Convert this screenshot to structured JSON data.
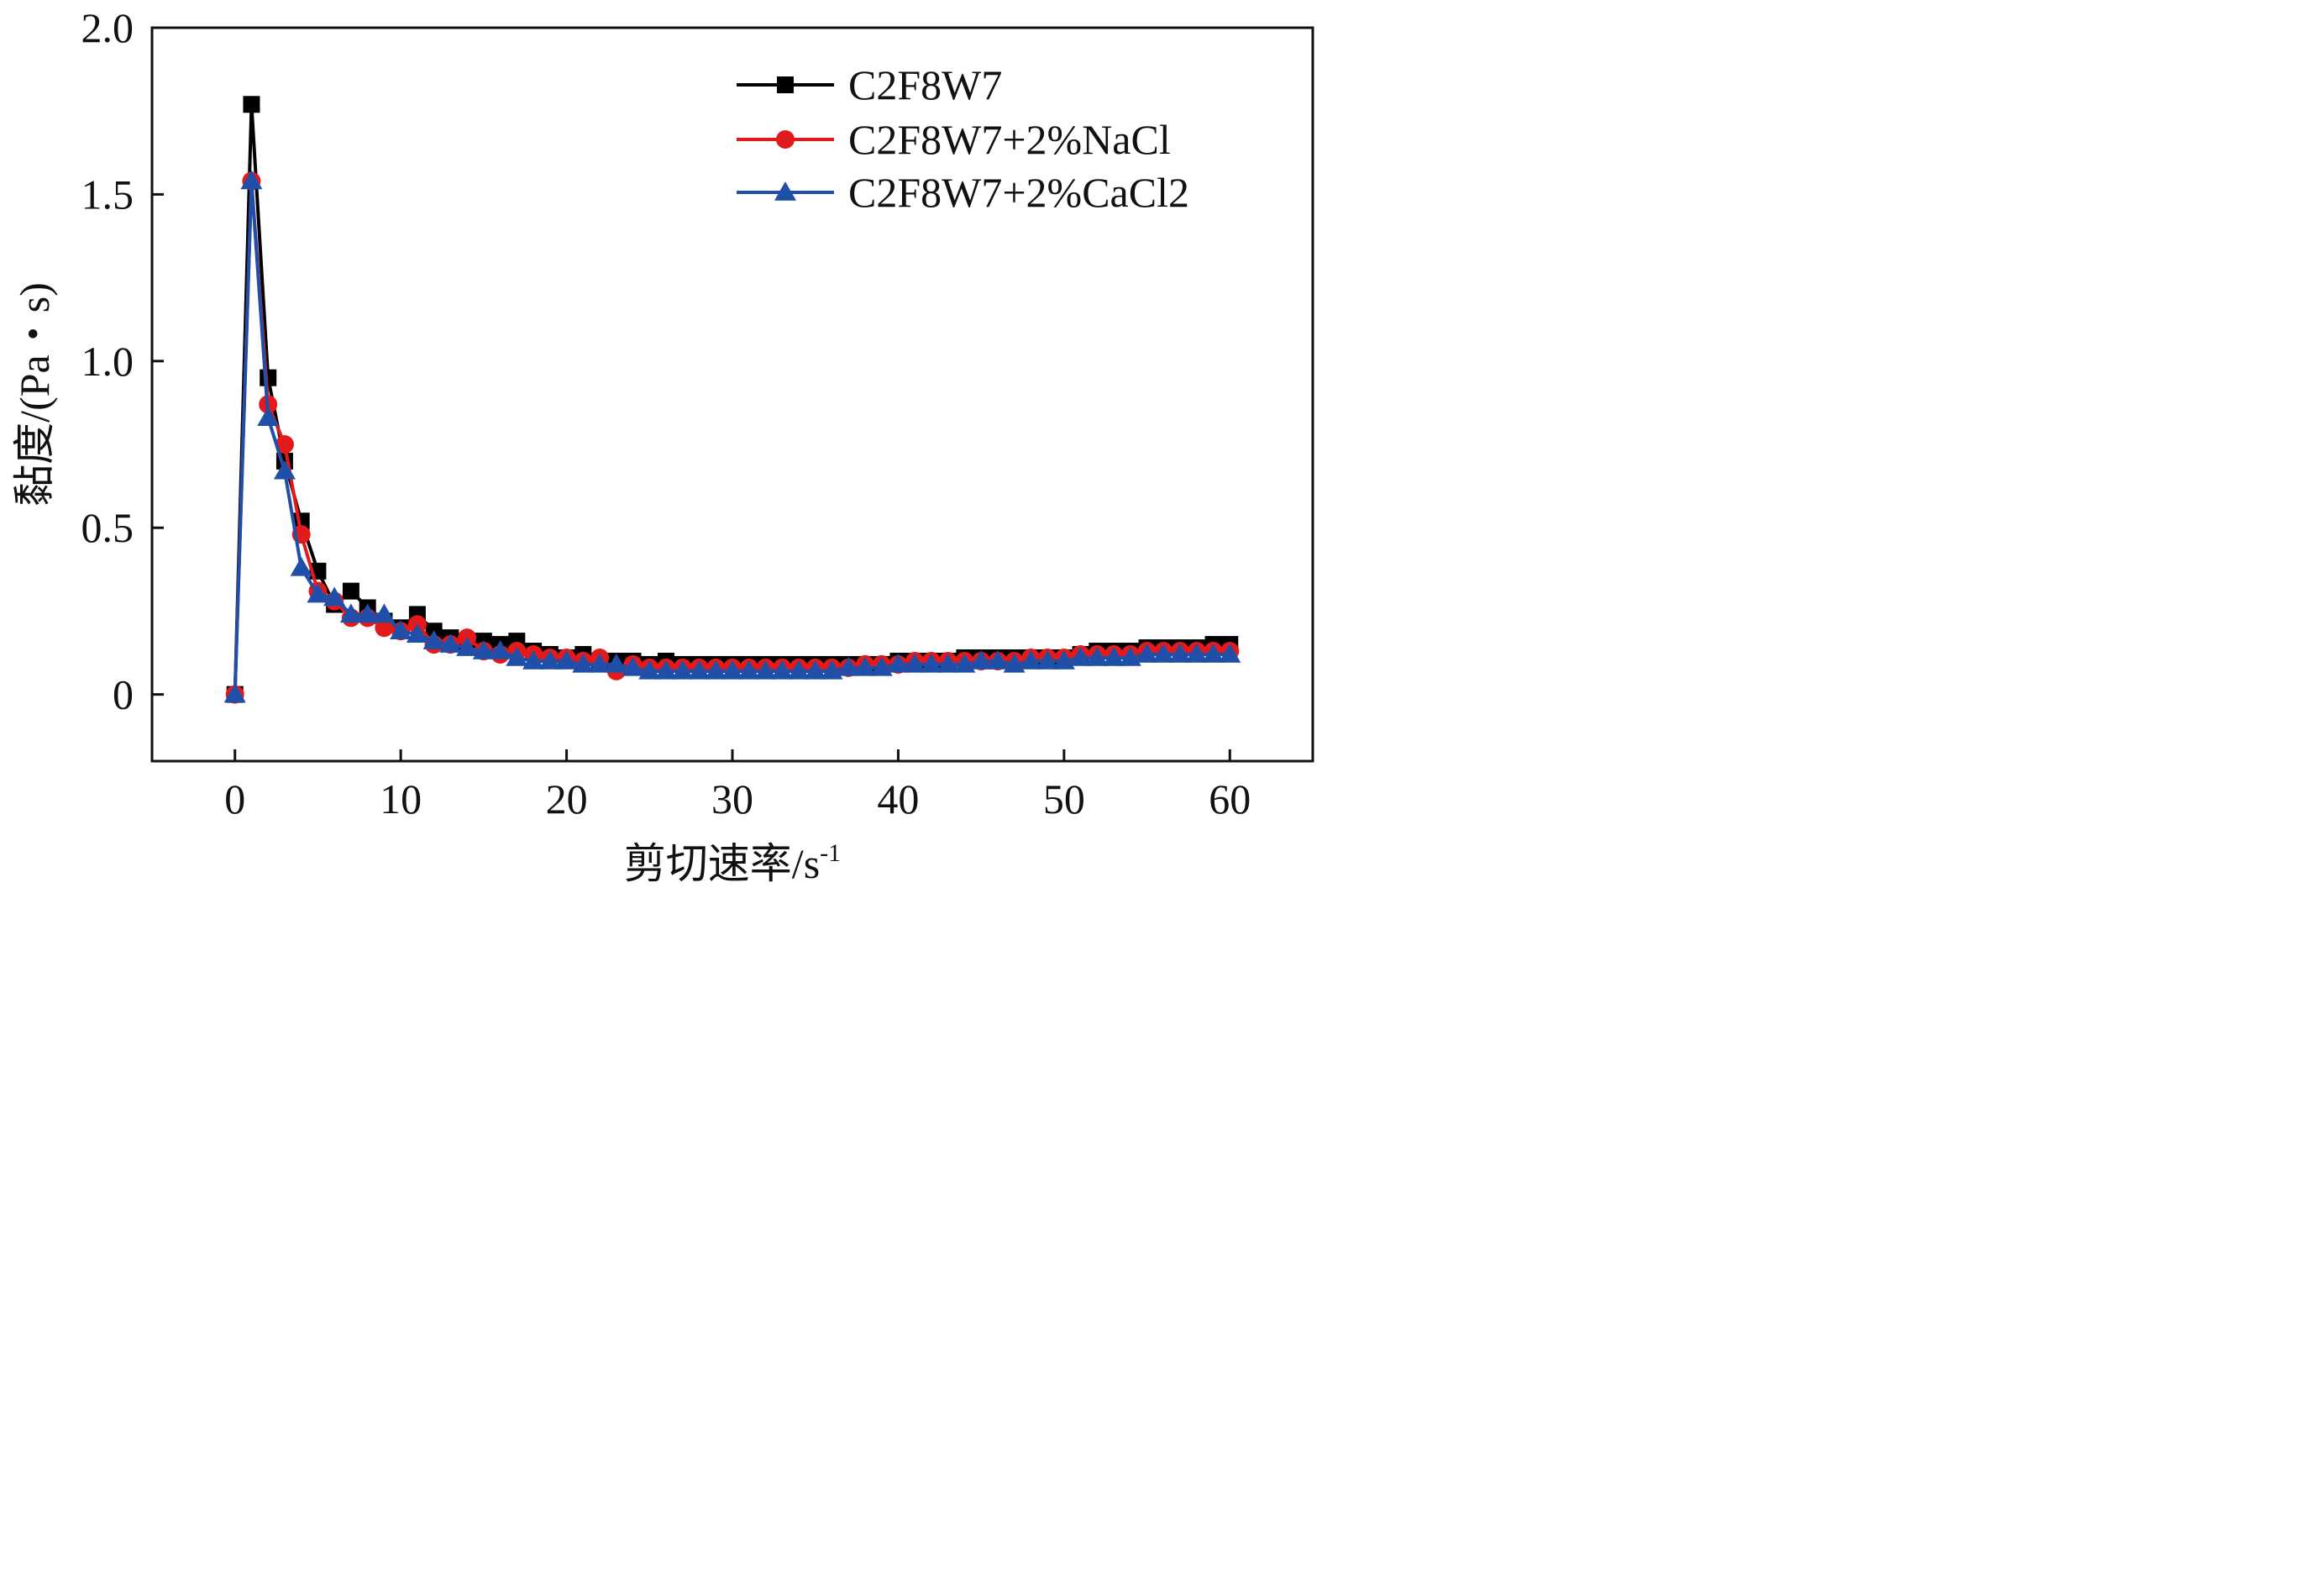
{
  "chart_data": {
    "type": "line",
    "title": "",
    "xlabel": "剪切速率/s",
    "xlabel_superscript": "-1",
    "ylabel": "黏度/(Pa・s)",
    "xlim": [
      -5,
      65
    ],
    "ylim": [
      -0.2,
      2.0
    ],
    "xticks": [
      0,
      10,
      20,
      30,
      40,
      50,
      60
    ],
    "xtick_labels": [
      "0",
      "10",
      "20",
      "30",
      "40",
      "50",
      "60"
    ],
    "yticks": [
      0,
      0.5,
      1.0,
      1.5,
      2.0
    ],
    "ytick_labels": [
      "0",
      "0.5",
      "1.0",
      "1.5",
      "2.0"
    ],
    "grid": false,
    "legend_position": "top-right",
    "x": [
      0,
      1,
      2,
      3,
      4,
      5,
      6,
      7,
      8,
      9,
      10,
      11,
      12,
      13,
      14,
      15,
      16,
      17,
      18,
      19,
      20,
      21,
      22,
      23,
      24,
      25,
      26,
      27,
      28,
      29,
      30,
      31,
      32,
      33,
      34,
      35,
      36,
      37,
      38,
      39,
      40,
      41,
      42,
      43,
      44,
      45,
      46,
      47,
      48,
      49,
      50,
      51,
      52,
      53,
      54,
      55,
      56,
      57,
      58,
      59,
      60
    ],
    "series": [
      {
        "name": "C2F8W7",
        "color": "#000000",
        "marker": "square",
        "values": [
          0,
          1.77,
          0.95,
          0.7,
          0.52,
          0.37,
          0.27,
          0.31,
          0.26,
          0.22,
          0.2,
          0.24,
          0.19,
          0.17,
          0.16,
          0.16,
          0.15,
          0.16,
          0.13,
          0.12,
          0.11,
          0.12,
          0.1,
          0.1,
          0.1,
          0.09,
          0.1,
          0.09,
          0.09,
          0.09,
          0.09,
          0.09,
          0.09,
          0.09,
          0.09,
          0.09,
          0.09,
          0.09,
          0.09,
          0.09,
          0.1,
          0.1,
          0.1,
          0.1,
          0.11,
          0.11,
          0.11,
          0.11,
          0.11,
          0.11,
          0.11,
          0.12,
          0.13,
          0.13,
          0.13,
          0.14,
          0.14,
          0.14,
          0.14,
          0.15,
          0.15
        ]
      },
      {
        "name": "C2F8W7+2%NaCl",
        "color": "#e31a1c",
        "marker": "circle",
        "values": [
          0,
          1.54,
          0.87,
          0.75,
          0.48,
          0.31,
          0.28,
          0.23,
          0.23,
          0.2,
          0.19,
          0.21,
          0.15,
          0.15,
          0.17,
          0.13,
          0.12,
          0.13,
          0.12,
          0.11,
          0.11,
          0.1,
          0.11,
          0.07,
          0.09,
          0.08,
          0.08,
          0.08,
          0.08,
          0.08,
          0.08,
          0.08,
          0.08,
          0.08,
          0.08,
          0.08,
          0.08,
          0.08,
          0.09,
          0.09,
          0.09,
          0.1,
          0.1,
          0.1,
          0.1,
          0.1,
          0.1,
          0.1,
          0.11,
          0.11,
          0.11,
          0.12,
          0.12,
          0.12,
          0.12,
          0.13,
          0.13,
          0.13,
          0.13,
          0.13,
          0.13
        ]
      },
      {
        "name": "C2F8W7+2%CaCl2",
        "color": "#1f4fa8",
        "marker": "triangle",
        "values": [
          0,
          1.54,
          0.83,
          0.67,
          0.38,
          0.3,
          0.29,
          0.24,
          0.24,
          0.24,
          0.19,
          0.18,
          0.16,
          0.15,
          0.14,
          0.13,
          0.13,
          0.11,
          0.1,
          0.1,
          0.1,
          0.09,
          0.09,
          0.09,
          0.08,
          0.07,
          0.07,
          0.07,
          0.07,
          0.07,
          0.07,
          0.07,
          0.07,
          0.07,
          0.07,
          0.07,
          0.07,
          0.08,
          0.08,
          0.08,
          0.09,
          0.09,
          0.09,
          0.09,
          0.09,
          0.1,
          0.1,
          0.09,
          0.1,
          0.1,
          0.1,
          0.11,
          0.11,
          0.11,
          0.11,
          0.12,
          0.12,
          0.12,
          0.12,
          0.12,
          0.12
        ]
      }
    ]
  }
}
